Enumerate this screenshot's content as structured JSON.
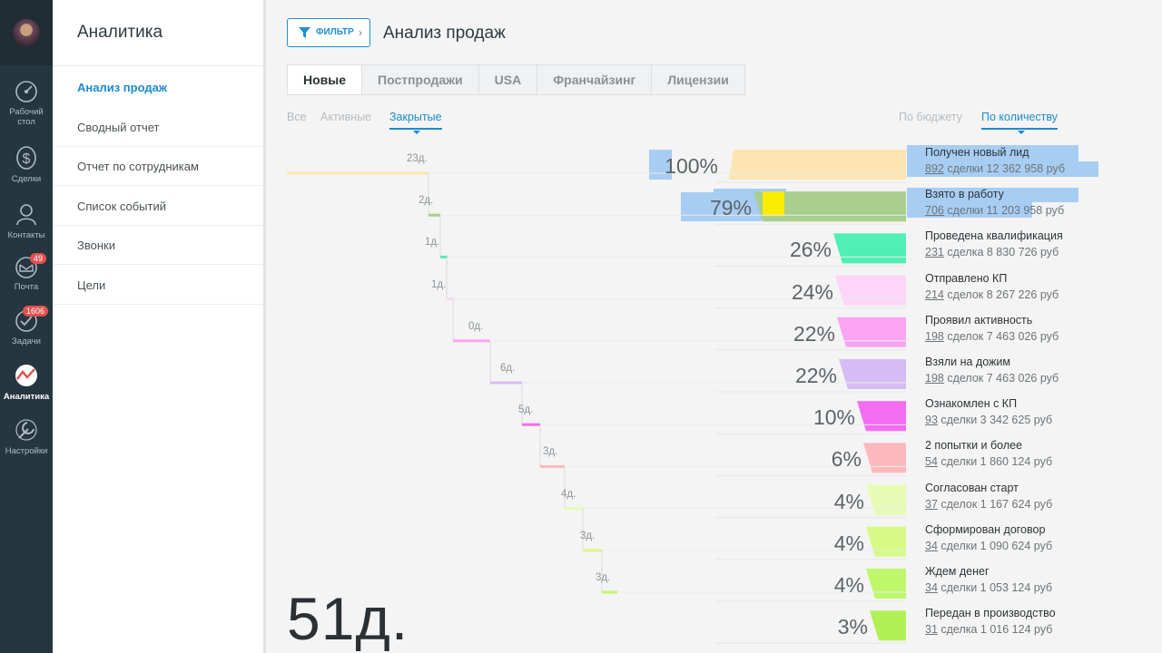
{
  "nav": {
    "items": [
      {
        "label_lines": [
          "Рабочий",
          "стол"
        ],
        "icon": "dashboard-icon"
      },
      {
        "label_lines": [
          "Сделки"
        ],
        "icon": "dollar-icon"
      },
      {
        "label_lines": [
          "Контакты"
        ],
        "icon": "contacts-icon"
      },
      {
        "label_lines": [
          "Почта"
        ],
        "icon": "mail-icon",
        "badge": "49"
      },
      {
        "label_lines": [
          "Задачи"
        ],
        "icon": "tasks-icon",
        "badge": "1606"
      },
      {
        "label_lines": [
          "Аналитика"
        ],
        "icon": "analytics-icon",
        "active": true
      },
      {
        "label_lines": [
          "Настройки"
        ],
        "icon": "settings-icon"
      }
    ]
  },
  "sidebar": {
    "title": "Аналитика",
    "items": [
      "Анализ продаж",
      "Сводный отчет",
      "Отчет по сотрудникам",
      "Список событий",
      "Звонки",
      "Цели"
    ],
    "active_index": 0
  },
  "header": {
    "filter_label": "ФИЛЬТР",
    "page_title": "Анализ продаж"
  },
  "tabs": {
    "items": [
      "Новые",
      "Постпродажи",
      "USA",
      "Франчайзинг",
      "Лицензии"
    ],
    "active_index": 0
  },
  "status_filters": {
    "items": [
      "Все",
      "Активные",
      "Закрытые"
    ],
    "active_index": 2
  },
  "view_filters": {
    "items": [
      "По бюджету",
      "По количеству"
    ],
    "active_index": 1
  },
  "funnel": {
    "stages": [
      {
        "name": "Получен новый лид",
        "count": "892",
        "rest": " сделки 12 362 958 руб",
        "pct": "100%",
        "days": "23д.",
        "color": "#fde5b1",
        "value": 100
      },
      {
        "name": "Взято в работу",
        "count": "706",
        "rest": " сделки 11 203 958 руб",
        "pct": "79%",
        "days": "2д.",
        "color": "#a8cf8e",
        "value": 79
      },
      {
        "name": "Проведена квалификация",
        "count": "231",
        "rest": " сделка 8 830 726 руб",
        "pct": "26%",
        "days": "1д.",
        "color": "#4fefb5",
        "value": 26
      },
      {
        "name": "Отправлено КП",
        "count": "214",
        "rest": " сделок 8 267 226 руб",
        "pct": "24%",
        "days": "1д.",
        "color": "#fcd5f8",
        "value": 24
      },
      {
        "name": "Проявил активность",
        "count": "198",
        "rest": " сделок 7 463 026 руб",
        "pct": "22%",
        "days": "0д.",
        "color": "#fba4f3",
        "value": 22
      },
      {
        "name": "Взяли на дожим",
        "count": "198",
        "rest": " сделок 7 463 026 руб",
        "pct": "22%",
        "days": "6д.",
        "color": "#d6bcf5",
        "value": 22
      },
      {
        "name": "Ознакомлен с КП",
        "count": "93",
        "rest": " сделки 3 342 625 руб",
        "pct": "10%",
        "days": "5д.",
        "color": "#f36cf1",
        "value": 10
      },
      {
        "name": "2 попытки и более",
        "count": "54",
        "rest": " сделки 1 860 124 руб",
        "pct": "6%",
        "days": "3д.",
        "color": "#fcb9bc",
        "value": 6
      },
      {
        "name": "Согласован старт",
        "count": "37",
        "rest": " сделок 1 167 624 руб",
        "pct": "4%",
        "days": "4д.",
        "color": "#e8fbb4",
        "value": 4
      },
      {
        "name": "Сформирован договор",
        "count": "34",
        "rest": " сделки 1 090 624 руб",
        "pct": "4%",
        "days": "3д.",
        "color": "#d6fa83",
        "value": 4
      },
      {
        "name": "Ждем денег",
        "count": "34",
        "rest": " сделки 1 053 124 руб",
        "pct": "4%",
        "days": "3д.",
        "color": "#bff76b",
        "value": 4
      },
      {
        "name": "Передан в производство",
        "count": "31",
        "rest": " сделка 1 016 124 руб",
        "pct": "3%",
        "days": "",
        "color": "#b2f155",
        "value": 3
      }
    ],
    "total_days": "51д."
  }
}
